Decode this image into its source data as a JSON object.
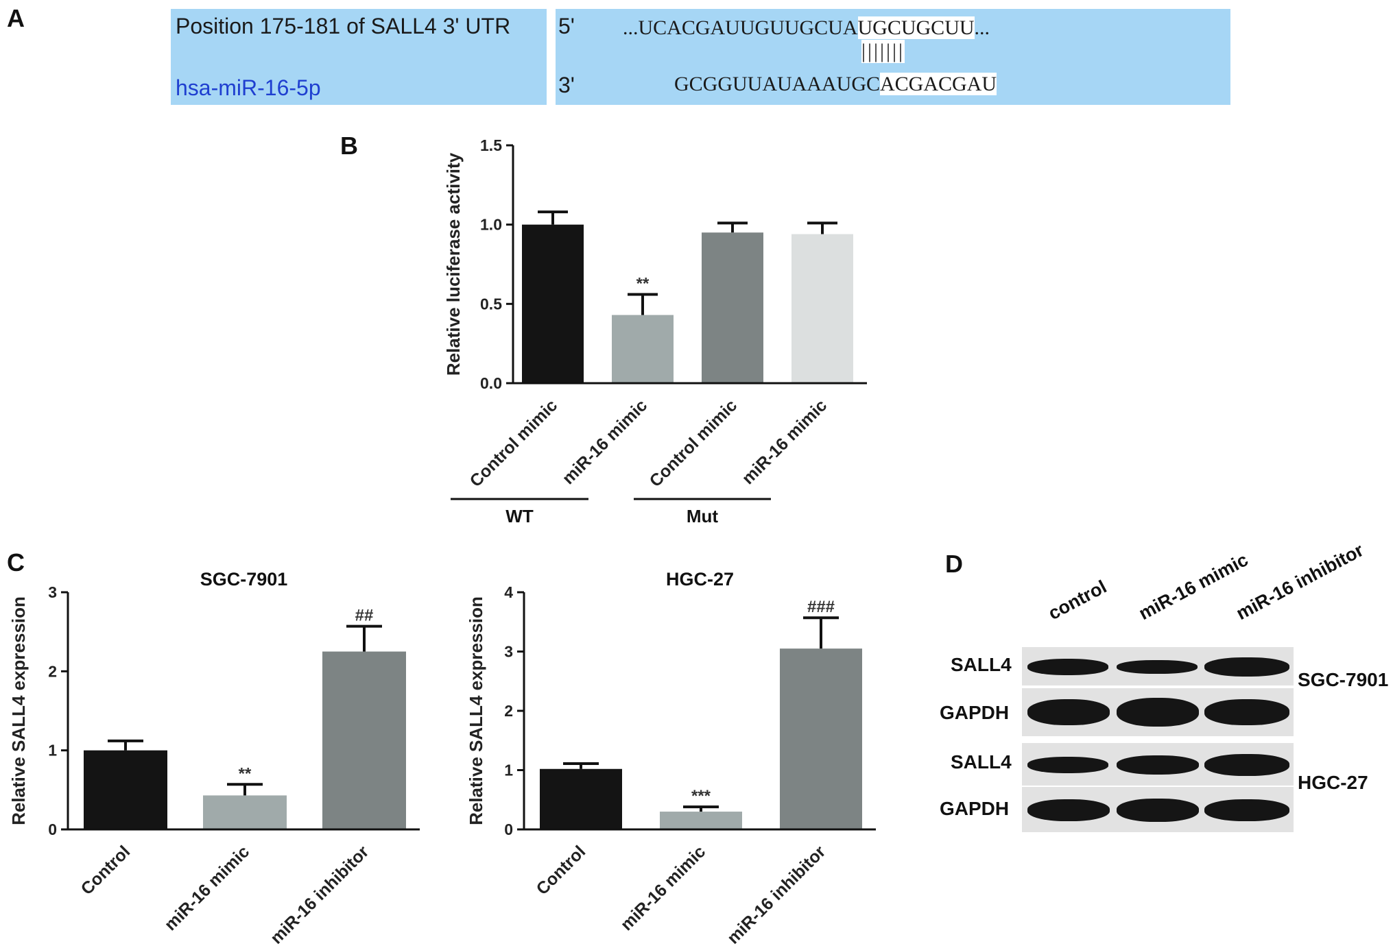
{
  "panels": {
    "a": {
      "letter": "A"
    },
    "b": {
      "letter": "B"
    },
    "c": {
      "letter": "C"
    },
    "d": {
      "letter": "D"
    }
  },
  "sequence": {
    "position_label": "Position 175-181 of SALL4 3' UTR",
    "mirna_label": "hsa-miR-16-5p",
    "utr_end": "5'",
    "mirna_end": "3'",
    "utr_prefix": "...UCACGAUUGUUGCUA",
    "utr_seed": "UGCUGCUU",
    "utr_suffix": "...",
    "pairing": "|||||||",
    "mirna_prefix": "GCGGUUAUAAAUGC",
    "mirna_seed": "ACGACGAU"
  },
  "chart_data": [
    {
      "type": "bar",
      "panel": "B",
      "ylabel": "Relative luciferase activity",
      "ylim": [
        0,
        1.5
      ],
      "yticks": [
        "0.0",
        "0.5",
        "1.0",
        "1.5"
      ],
      "categories": [
        "Control mimic",
        "miR-16 mimic",
        "Control mimic",
        "miR-16 mimic"
      ],
      "values": [
        1.0,
        0.43,
        0.95,
        0.94
      ],
      "errors": [
        0.08,
        0.13,
        0.06,
        0.07
      ],
      "annotations": [
        "",
        "**",
        "",
        ""
      ],
      "colors": [
        "#141414",
        "#a0aaaa",
        "#7d8484",
        "#dcdfdf"
      ],
      "groups": [
        {
          "label": "WT"
        },
        {
          "label": "Mut"
        }
      ]
    },
    {
      "type": "bar",
      "panel": "C",
      "title": "SGC-7901",
      "ylabel": "Relative SALL4 expression",
      "ylim": [
        0,
        3
      ],
      "yticks": [
        "0",
        "1",
        "2",
        "3"
      ],
      "categories": [
        "Control",
        "miR-16 mimic",
        "miR-16 inhibitor"
      ],
      "values": [
        1.0,
        0.43,
        2.25
      ],
      "errors": [
        0.12,
        0.14,
        0.32
      ],
      "annotations": [
        "",
        "**",
        "##"
      ],
      "colors": [
        "#141414",
        "#a0aaaa",
        "#7d8484"
      ]
    },
    {
      "type": "bar",
      "panel": "C",
      "title": "HGC-27",
      "ylabel": "Relative SALL4 expression",
      "ylim": [
        0,
        4
      ],
      "yticks": [
        "0",
        "1",
        "2",
        "3",
        "4"
      ],
      "categories": [
        "Control",
        "miR-16 mimic",
        "miR-16 inhibitor"
      ],
      "values": [
        1.02,
        0.3,
        3.05
      ],
      "errors": [
        0.09,
        0.08,
        0.52
      ],
      "annotations": [
        "",
        "***",
        "###"
      ],
      "colors": [
        "#141414",
        "#a0aaaa",
        "#7d8484"
      ]
    }
  ],
  "western_blot": {
    "lanes": [
      "control",
      "miR-16 mimic",
      "miR-16 inhibitor"
    ],
    "rows": [
      {
        "protein": "SALL4",
        "cell_line": "SGC-7901"
      },
      {
        "protein": "GAPDH",
        "cell_line": ""
      },
      {
        "protein": "SALL4",
        "cell_line": "HGC-27"
      },
      {
        "protein": "GAPDH",
        "cell_line": ""
      }
    ]
  }
}
